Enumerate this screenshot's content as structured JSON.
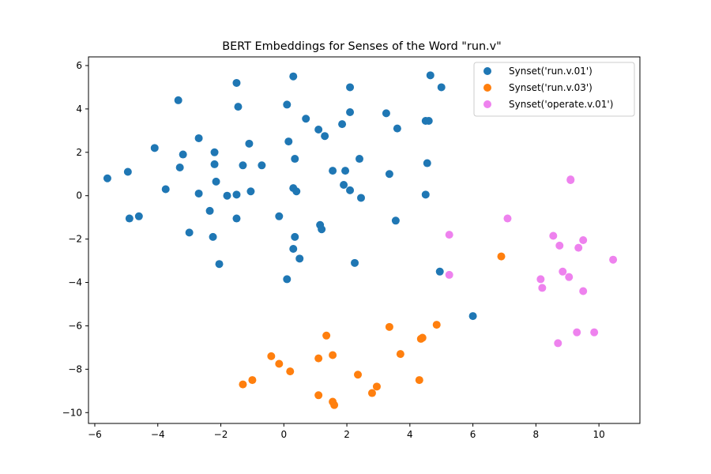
{
  "chart_data": {
    "type": "scatter",
    "title": "BERT Embeddings for Senses of the Word \"run.v\"",
    "xlabel": "",
    "ylabel": "",
    "xlim": [
      -6.2,
      11.3
    ],
    "ylim": [
      -10.5,
      6.4
    ],
    "x_ticks": [
      -6,
      -4,
      -2,
      0,
      2,
      4,
      6,
      8,
      10
    ],
    "x_tick_labels": [
      "−6",
      "−4",
      "−2",
      "0",
      "2",
      "4",
      "6",
      "8",
      "10"
    ],
    "y_ticks": [
      6,
      4,
      2,
      0,
      -2,
      -4,
      -6,
      -8,
      -10
    ],
    "y_tick_labels": [
      "6",
      "4",
      "2",
      "0",
      "−2",
      "−4",
      "−6",
      "−8",
      "−10"
    ],
    "grid": false,
    "legend_position": "top-right",
    "series": [
      {
        "name": "Synset('run.v.01')",
        "color": "#1f77b4",
        "points": [
          [
            -5.6,
            0.8
          ],
          [
            -4.95,
            1.1
          ],
          [
            -4.9,
            -1.05
          ],
          [
            -4.6,
            -0.95
          ],
          [
            -4.1,
            2.2
          ],
          [
            -3.75,
            0.3
          ],
          [
            -3.35,
            4.4
          ],
          [
            -3.3,
            1.3
          ],
          [
            -3.2,
            1.9
          ],
          [
            -3.0,
            -1.7
          ],
          [
            -2.7,
            2.65
          ],
          [
            -2.7,
            0.1
          ],
          [
            -2.35,
            -0.7
          ],
          [
            -2.25,
            -1.9
          ],
          [
            -2.2,
            2.0
          ],
          [
            -2.2,
            1.45
          ],
          [
            -2.15,
            0.65
          ],
          [
            -2.05,
            -3.15
          ],
          [
            -1.8,
            0.0
          ],
          [
            -1.5,
            5.2
          ],
          [
            -1.45,
            4.1
          ],
          [
            -1.5,
            0.05
          ],
          [
            -1.5,
            -1.05
          ],
          [
            -1.3,
            1.4
          ],
          [
            -1.1,
            2.4
          ],
          [
            -1.05,
            0.2
          ],
          [
            -0.7,
            1.4
          ],
          [
            -0.15,
            -0.95
          ],
          [
            0.1,
            4.2
          ],
          [
            0.15,
            2.5
          ],
          [
            0.3,
            5.5
          ],
          [
            0.3,
            0.35
          ],
          [
            0.35,
            1.7
          ],
          [
            0.4,
            0.2
          ],
          [
            0.35,
            -1.9
          ],
          [
            0.3,
            -2.45
          ],
          [
            0.5,
            -2.9
          ],
          [
            0.1,
            -3.85
          ],
          [
            0.7,
            3.55
          ],
          [
            1.1,
            3.05
          ],
          [
            1.3,
            2.75
          ],
          [
            1.15,
            -1.35
          ],
          [
            1.2,
            -1.55
          ],
          [
            1.55,
            1.15
          ],
          [
            1.85,
            3.3
          ],
          [
            1.95,
            1.15
          ],
          [
            1.9,
            0.5
          ],
          [
            2.1,
            5.0
          ],
          [
            2.1,
            3.85
          ],
          [
            2.1,
            0.25
          ],
          [
            2.4,
            1.7
          ],
          [
            2.45,
            -0.1
          ],
          [
            2.25,
            -3.1
          ],
          [
            3.25,
            3.8
          ],
          [
            3.35,
            1.0
          ],
          [
            3.6,
            3.1
          ],
          [
            3.55,
            -1.15
          ],
          [
            4.5,
            3.45
          ],
          [
            4.6,
            3.45
          ],
          [
            4.65,
            5.55
          ],
          [
            5.0,
            5.0
          ],
          [
            4.5,
            0.05
          ],
          [
            4.55,
            1.5
          ],
          [
            4.95,
            -3.5
          ],
          [
            6.0,
            -5.55
          ]
        ]
      },
      {
        "name": "Synset('run.v.03')",
        "color": "#ff7f0e",
        "points": [
          [
            -1.3,
            -8.7
          ],
          [
            -1.0,
            -8.5
          ],
          [
            -0.4,
            -7.4
          ],
          [
            -0.15,
            -7.75
          ],
          [
            0.2,
            -8.1
          ],
          [
            1.1,
            -7.5
          ],
          [
            1.1,
            -9.2
          ],
          [
            1.35,
            -6.45
          ],
          [
            1.55,
            -7.35
          ],
          [
            1.55,
            -9.5
          ],
          [
            1.6,
            -9.65
          ],
          [
            2.35,
            -8.25
          ],
          [
            2.8,
            -9.1
          ],
          [
            2.95,
            -8.8
          ],
          [
            3.35,
            -6.05
          ],
          [
            3.7,
            -7.3
          ],
          [
            4.3,
            -8.5
          ],
          [
            4.35,
            -6.6
          ],
          [
            4.4,
            -6.55
          ],
          [
            4.85,
            -5.95
          ],
          [
            6.9,
            -2.8
          ]
        ]
      },
      {
        "name": "Synset('operate.v.01')",
        "color": "#ee82ee",
        "points": [
          [
            5.25,
            -1.8
          ],
          [
            5.25,
            -3.65
          ],
          [
            7.1,
            -1.05
          ],
          [
            8.15,
            -3.85
          ],
          [
            8.2,
            -4.25
          ],
          [
            8.55,
            -1.85
          ],
          [
            8.7,
            -6.8
          ],
          [
            8.75,
            -2.3
          ],
          [
            8.85,
            -3.5
          ],
          [
            9.05,
            -3.75
          ],
          [
            9.1,
            0.75
          ],
          [
            9.1,
            0.72
          ],
          [
            9.3,
            -6.3
          ],
          [
            9.35,
            -2.4
          ],
          [
            9.5,
            -2.05
          ],
          [
            9.5,
            -4.4
          ],
          [
            9.85,
            -6.3
          ],
          [
            10.45,
            -2.95
          ]
        ]
      }
    ]
  }
}
